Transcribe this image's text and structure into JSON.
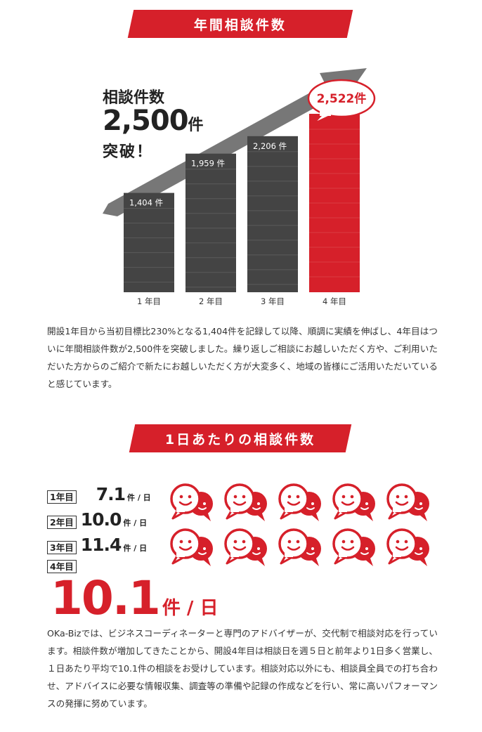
{
  "section1": {
    "title": "年間相談件数"
  },
  "headline": {
    "line1": "相談件数",
    "number": "2,500",
    "unit": "件",
    "line3": "突破！"
  },
  "chart_data": {
    "type": "bar",
    "categories": [
      "1 年目",
      "2 年目",
      "3 年目",
      "4 年目"
    ],
    "values": [
      1404,
      1959,
      2206,
      2522
    ],
    "data_labels": [
      "1,404 件",
      "1,959 件",
      "2,206 件",
      "2,522件"
    ],
    "ylim": [
      0,
      2600
    ],
    "colors": [
      "#444444",
      "#444444",
      "#444444",
      "#d6202a"
    ],
    "highlight_index": 3,
    "grid": false,
    "title": "",
    "xlabel": "",
    "ylabel": ""
  },
  "paragraph1": "開設1年目から当初目標比230%となる1,404件を記録して以降、順調に実績を伸ばし、4年目はついに年間相談件数が2,500件を突破しました。繰り返しご相談にお越しいただく方や、ご利用いただいた方からのご紹介で新たにお越しいただく方が大変多く、地域の皆様にご活用いただいていると感じています。",
  "section2": {
    "title": "1日あたりの相談件数"
  },
  "daily": {
    "rows": [
      {
        "year": "1年目",
        "value": "7.1",
        "unit": "件 / 日"
      },
      {
        "year": "2年目",
        "value": "10.0",
        "unit": "件 / 日"
      },
      {
        "year": "3年目",
        "value": "11.4",
        "unit": "件 / 日"
      }
    ],
    "year4": {
      "year": "4年目",
      "value": "10.1",
      "unit": "件 / 日"
    },
    "icon_count": 10,
    "icon": "chat-faces-icon"
  },
  "paragraph2": "OKa-Bizでは、ビジネスコーディネーターと専門のアドバイザーが、交代制で相談対応を行っています。相談件数が増加してきたことから、開設4年目は相談日を週５日と前年より1日多く営業し、１日あたり平均で10.1件の相談をお受けしています。相談対応以外にも、相談員全員での打ち合わせ、アドバイスに必要な情報収集、調査等の準備や記録の作成などを行い、常に高いパフォーマンスの発揮に努めています。",
  "colors": {
    "accent": "#d6202a",
    "bar": "#444444",
    "arrow": "#777777"
  }
}
